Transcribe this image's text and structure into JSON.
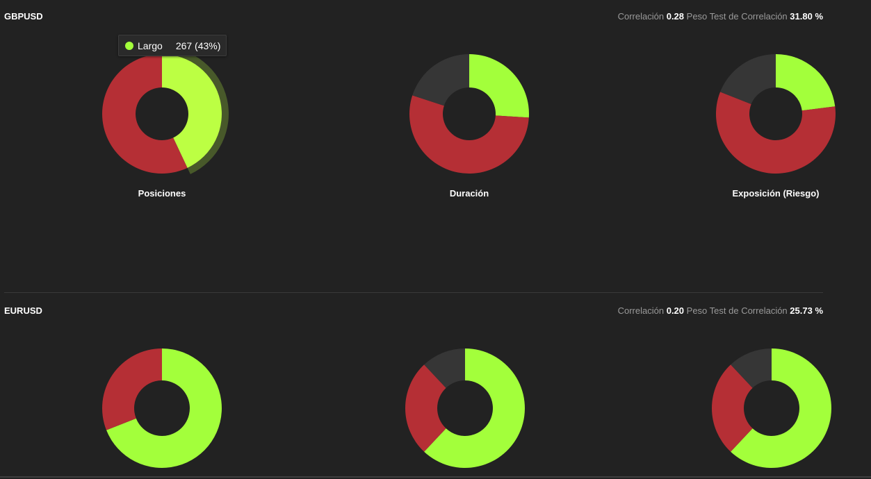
{
  "colors": {
    "long": "#a3ff3b",
    "short": "#b52f35",
    "neutral": "#363636",
    "background": "#222222"
  },
  "tooltip": {
    "label": "Largo",
    "value": "267 (43%)",
    "color": "#a3ff3b",
    "highlight_color": "#bcff43"
  },
  "sections": [
    {
      "pair": "GBPUSD",
      "correlation_label": "Correlación",
      "correlation_value": "0.28",
      "weight_label": "Peso Test de Correlación",
      "weight_value": "31.80 %"
    },
    {
      "pair": "EURUSD",
      "correlation_label": "Correlación",
      "correlation_value": "0.20",
      "weight_label": "Peso Test de Correlación",
      "weight_value": "25.73 %"
    }
  ],
  "chart_data": [
    {
      "type": "pie",
      "group": "GBPUSD",
      "title": "Posiciones",
      "categories": [
        "Largo",
        ""
      ],
      "values": [
        43,
        57
      ],
      "highlighted": 0
    },
    {
      "type": "pie",
      "group": "GBPUSD",
      "title": "Duración",
      "categories": [
        "",
        "",
        ""
      ],
      "values": [
        26,
        54,
        20
      ]
    },
    {
      "type": "pie",
      "group": "GBPUSD",
      "title": "Exposición (Riesgo)",
      "categories": [
        "",
        "",
        ""
      ],
      "values": [
        23,
        58,
        19
      ]
    },
    {
      "type": "pie",
      "group": "EURUSD",
      "title": "",
      "categories": [
        "",
        ""
      ],
      "values": [
        69,
        31
      ]
    },
    {
      "type": "pie",
      "group": "EURUSD",
      "title": "",
      "categories": [
        "",
        "",
        ""
      ],
      "values": [
        62,
        26,
        12
      ]
    },
    {
      "type": "pie",
      "group": "EURUSD",
      "title": "",
      "categories": [
        "",
        "",
        ""
      ],
      "values": [
        62,
        26,
        12
      ]
    }
  ]
}
